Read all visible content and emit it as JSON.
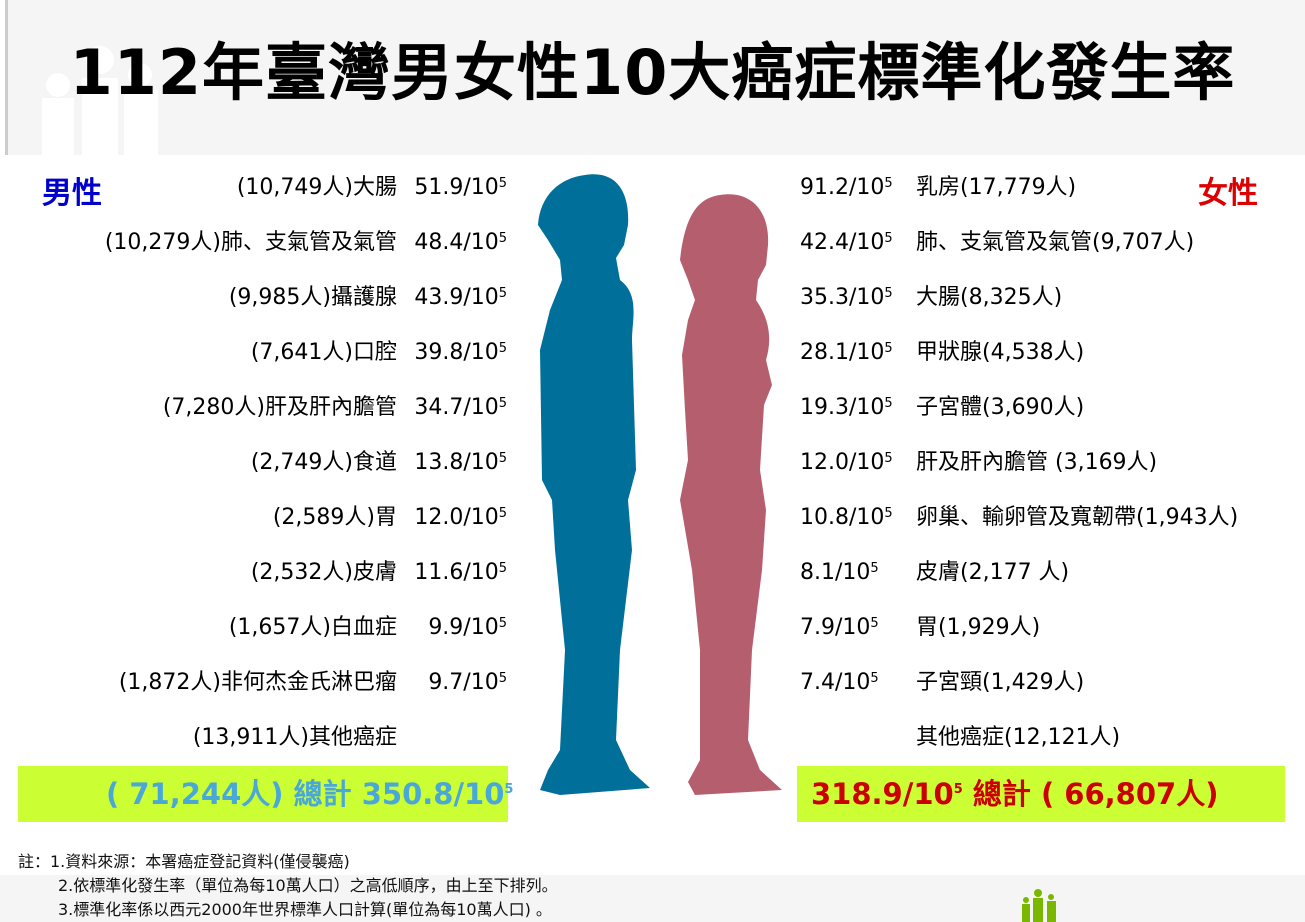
{
  "title": "112年臺灣男女性10大癌症標準化發生率",
  "male": {
    "label": "男性",
    "color": "#0000cc",
    "rows": [
      {
        "cases": "(10,749人)",
        "site": "大腸",
        "rate": "51.9/10",
        "exp": "5"
      },
      {
        "cases": "(10,279人)",
        "site": "肺、支氣管及氣管",
        "rate": "48.4/10",
        "exp": "5"
      },
      {
        "cases": "(9,985人)",
        "site": "攝護腺",
        "rate": "43.9/10",
        "exp": "5"
      },
      {
        "cases": "(7,641人)",
        "site": "口腔",
        "rate": "39.8/10",
        "exp": "5"
      },
      {
        "cases": "(7,280人)",
        "site": "肝及肝內膽管",
        "rate": "34.7/10",
        "exp": "5"
      },
      {
        "cases": "(2,749人)",
        "site": "食道",
        "rate": "13.8/10",
        "exp": "5"
      },
      {
        "cases": "(2,589人)",
        "site": "胃",
        "rate": "12.0/10",
        "exp": "5"
      },
      {
        "cases": "(2,532人)",
        "site": "皮膚",
        "rate": "11.6/10",
        "exp": "5"
      },
      {
        "cases": "(1,657人)",
        "site": "白血症",
        "rate": "9.9/10",
        "exp": "5"
      },
      {
        "cases": "(1,872人)",
        "site": "非何杰金氏淋巴瘤",
        "rate": "9.7/10",
        "exp": "5"
      },
      {
        "cases": "(13,911人)",
        "site": "其他癌症",
        "rate": "",
        "exp": ""
      }
    ],
    "total": {
      "cases": "( 71,244人) ",
      "label": "總計 ",
      "rate": "350.8/10",
      "exp": "5"
    },
    "total_color": "#4aa8d8",
    "silhouette_color": "#00709a"
  },
  "female": {
    "label": "女性",
    "color": "#dd0000",
    "rows": [
      {
        "rate": "91.2/10",
        "exp": "5",
        "site": "乳房(17,779人)"
      },
      {
        "rate": "42.4/10",
        "exp": "5",
        "site": "肺、支氣管及氣管(9,707人)"
      },
      {
        "rate": "35.3/10",
        "exp": "5",
        "site": "大腸(8,325人)"
      },
      {
        "rate": "28.1/10",
        "exp": "5",
        "site": "甲狀腺(4,538人)"
      },
      {
        "rate": "19.3/10",
        "exp": "5",
        "site": "子宮體(3,690人)"
      },
      {
        "rate": "12.0/10",
        "exp": "5",
        "site": "肝及肝內膽管 (3,169人)"
      },
      {
        "rate": "10.8/10",
        "exp": "5",
        "site": "卵巢、輸卵管及寬韌帶(1,943人)"
      },
      {
        "rate": "8.1/10",
        "exp": "5",
        "site": "皮膚(2,177 人)"
      },
      {
        "rate": "7.9/10",
        "exp": "5",
        "site": "胃(1,929人)"
      },
      {
        "rate": "7.4/10",
        "exp": "5",
        "site": "子宮頸(1,429人)"
      },
      {
        "rate": "",
        "exp": "",
        "site": "其他癌症(12,121人)"
      }
    ],
    "total": {
      "rate": "318.9/10",
      "exp": "5",
      "label": " 總計 ",
      "cases": "( 66,807人)"
    },
    "total_color": "#cc0000",
    "silhouette_color": "#b55f6e"
  },
  "notes": [
    "註：1.資料來源：本署癌症登記資料(僅侵襲癌)",
    "2.依標準化發生率（單位為每10萬人口）之高低順序，由上至下排列。",
    "3.標準化率係以西元2000年世界標準人口計算(單位為每10萬人口) 。"
  ],
  "total_box_color": "#ccff33"
}
